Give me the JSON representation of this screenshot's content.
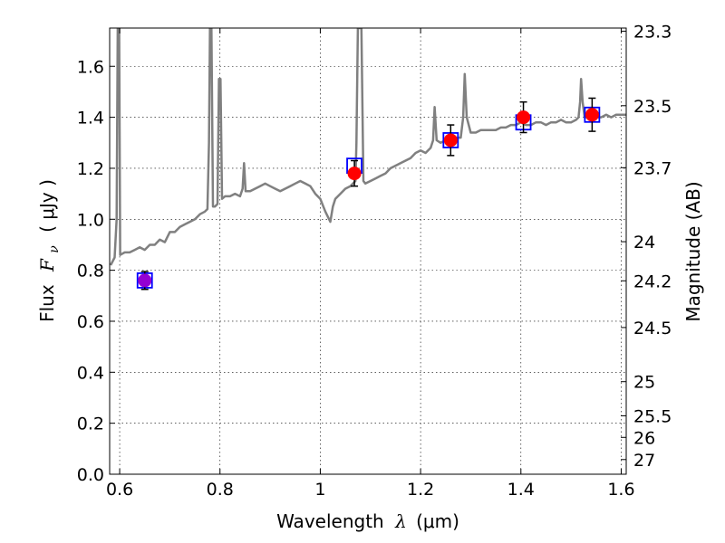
{
  "chart_data": {
    "type": "scatter",
    "xlabel_prefix": "Wavelength",
    "xlabel_symbol": "λ",
    "xlabel_units": "(μm)",
    "ylabel_prefix": "Flux",
    "ylabel_symbol": "F",
    "ylabel_subscript": "ν",
    "ylabel_units": "( μJy )",
    "y2label": "Magnitude (AB)",
    "xlim": [
      0.58,
      1.61
    ],
    "ylim": [
      0.0,
      1.75
    ],
    "grid": true,
    "x_ticks": [
      {
        "value": 0.6,
        "label": "0.6"
      },
      {
        "value": 0.8,
        "label": "0.8"
      },
      {
        "value": 1.0,
        "label": "1"
      },
      {
        "value": 1.2,
        "label": "1.2"
      },
      {
        "value": 1.4,
        "label": "1.4"
      },
      {
        "value": 1.6,
        "label": "1.6"
      }
    ],
    "y_ticks": [
      {
        "value": 0.0,
        "label": "0.0"
      },
      {
        "value": 0.2,
        "label": "0.2"
      },
      {
        "value": 0.4,
        "label": "0.4"
      },
      {
        "value": 0.6,
        "label": "0.6"
      },
      {
        "value": 0.8,
        "label": "0.8"
      },
      {
        "value": 1.0,
        "label": "1.0"
      },
      {
        "value": 1.2,
        "label": "1.2"
      },
      {
        "value": 1.4,
        "label": "1.4"
      },
      {
        "value": 1.6,
        "label": "1.6"
      }
    ],
    "y2_ticks": [
      {
        "label": "23.3",
        "mag": 23.3
      },
      {
        "label": "23.5",
        "mag": 23.5
      },
      {
        "label": "23.7",
        "mag": 23.7
      },
      {
        "label": "24",
        "mag": 24.0
      },
      {
        "label": "24.2",
        "mag": 24.2
      },
      {
        "label": "24.5",
        "mag": 24.5
      },
      {
        "label": "25",
        "mag": 25.0
      },
      {
        "label": "25.5",
        "mag": 25.5
      },
      {
        "label": "26",
        "mag": 26.0
      },
      {
        "label": "27",
        "mag": 27.0
      }
    ],
    "series": [
      {
        "style": "line",
        "color": "#808080",
        "points": [
          [
            0.582,
            0.82
          ],
          [
            0.59,
            0.85
          ],
          [
            0.594,
            1.0
          ],
          [
            0.596,
            1.75
          ],
          [
            0.599,
            1.75
          ],
          [
            0.601,
            0.86
          ],
          [
            0.61,
            0.87
          ],
          [
            0.62,
            0.87
          ],
          [
            0.63,
            0.88
          ],
          [
            0.64,
            0.89
          ],
          [
            0.65,
            0.88
          ],
          [
            0.66,
            0.9
          ],
          [
            0.67,
            0.9
          ],
          [
            0.68,
            0.92
          ],
          [
            0.69,
            0.91
          ],
          [
            0.7,
            0.95
          ],
          [
            0.71,
            0.95
          ],
          [
            0.72,
            0.97
          ],
          [
            0.73,
            0.98
          ],
          [
            0.74,
            0.99
          ],
          [
            0.75,
            1.0
          ],
          [
            0.76,
            1.02
          ],
          [
            0.77,
            1.03
          ],
          [
            0.775,
            1.04
          ],
          [
            0.778,
            1.3
          ],
          [
            0.78,
            1.75
          ],
          [
            0.783,
            1.75
          ],
          [
            0.786,
            1.05
          ],
          [
            0.79,
            1.05
          ],
          [
            0.795,
            1.06
          ],
          [
            0.798,
            1.55
          ],
          [
            0.801,
            1.55
          ],
          [
            0.804,
            1.08
          ],
          [
            0.81,
            1.09
          ],
          [
            0.82,
            1.09
          ],
          [
            0.83,
            1.1
          ],
          [
            0.84,
            1.09
          ],
          [
            0.845,
            1.12
          ],
          [
            0.848,
            1.22
          ],
          [
            0.851,
            1.11
          ],
          [
            0.86,
            1.11
          ],
          [
            0.87,
            1.12
          ],
          [
            0.88,
            1.13
          ],
          [
            0.89,
            1.14
          ],
          [
            0.9,
            1.13
          ],
          [
            0.91,
            1.12
          ],
          [
            0.92,
            1.11
          ],
          [
            0.93,
            1.12
          ],
          [
            0.94,
            1.13
          ],
          [
            0.95,
            1.14
          ],
          [
            0.96,
            1.15
          ],
          [
            0.97,
            1.14
          ],
          [
            0.98,
            1.13
          ],
          [
            0.99,
            1.1
          ],
          [
            1.0,
            1.08
          ],
          [
            1.01,
            1.03
          ],
          [
            1.02,
            0.99
          ],
          [
            1.025,
            1.05
          ],
          [
            1.03,
            1.08
          ],
          [
            1.04,
            1.1
          ],
          [
            1.05,
            1.12
          ],
          [
            1.06,
            1.13
          ],
          [
            1.07,
            1.15
          ],
          [
            1.072,
            1.3
          ],
          [
            1.075,
            1.75
          ],
          [
            1.082,
            1.75
          ],
          [
            1.086,
            1.15
          ],
          [
            1.09,
            1.14
          ],
          [
            1.1,
            1.15
          ],
          [
            1.11,
            1.16
          ],
          [
            1.12,
            1.17
          ],
          [
            1.13,
            1.18
          ],
          [
            1.14,
            1.2
          ],
          [
            1.15,
            1.21
          ],
          [
            1.16,
            1.22
          ],
          [
            1.17,
            1.23
          ],
          [
            1.18,
            1.24
          ],
          [
            1.19,
            1.26
          ],
          [
            1.2,
            1.27
          ],
          [
            1.21,
            1.26
          ],
          [
            1.22,
            1.28
          ],
          [
            1.225,
            1.31
          ],
          [
            1.228,
            1.44
          ],
          [
            1.232,
            1.31
          ],
          [
            1.24,
            1.3
          ],
          [
            1.25,
            1.31
          ],
          [
            1.26,
            1.31
          ],
          [
            1.27,
            1.32
          ],
          [
            1.28,
            1.32
          ],
          [
            1.285,
            1.4
          ],
          [
            1.288,
            1.57
          ],
          [
            1.292,
            1.4
          ],
          [
            1.3,
            1.34
          ],
          [
            1.31,
            1.34
          ],
          [
            1.32,
            1.35
          ],
          [
            1.33,
            1.35
          ],
          [
            1.34,
            1.35
          ],
          [
            1.35,
            1.35
          ],
          [
            1.36,
            1.36
          ],
          [
            1.37,
            1.36
          ],
          [
            1.38,
            1.37
          ],
          [
            1.39,
            1.37
          ],
          [
            1.4,
            1.38
          ],
          [
            1.41,
            1.37
          ],
          [
            1.42,
            1.37
          ],
          [
            1.43,
            1.38
          ],
          [
            1.44,
            1.38
          ],
          [
            1.45,
            1.37
          ],
          [
            1.46,
            1.38
          ],
          [
            1.47,
            1.38
          ],
          [
            1.48,
            1.39
          ],
          [
            1.49,
            1.38
          ],
          [
            1.5,
            1.38
          ],
          [
            1.51,
            1.39
          ],
          [
            1.515,
            1.4
          ],
          [
            1.518,
            1.46
          ],
          [
            1.52,
            1.55
          ],
          [
            1.523,
            1.46
          ],
          [
            1.527,
            1.4
          ],
          [
            1.535,
            1.4
          ],
          [
            1.55,
            1.4
          ],
          [
            1.56,
            1.4
          ],
          [
            1.57,
            1.41
          ],
          [
            1.58,
            1.4
          ],
          [
            1.59,
            1.41
          ],
          [
            1.6,
            1.41
          ],
          [
            1.61,
            1.41
          ]
        ]
      },
      {
        "style": "open-square",
        "color": "#0000ff",
        "points": [
          [
            0.65,
            0.76
          ],
          [
            1.068,
            1.21
          ],
          [
            1.26,
            1.31
          ],
          [
            1.405,
            1.38
          ],
          [
            1.542,
            1.41
          ]
        ]
      },
      {
        "style": "filled-circle-errorbar",
        "color": "#ff0000",
        "points": [
          {
            "x": 1.068,
            "y": 1.18,
            "err": 0.05
          },
          {
            "x": 1.26,
            "y": 1.31,
            "err": 0.06
          },
          {
            "x": 1.405,
            "y": 1.4,
            "err": 0.06
          },
          {
            "x": 1.542,
            "y": 1.41,
            "err": 0.065
          }
        ]
      },
      {
        "style": "filled-circle-errorbar",
        "color": "#9400d3",
        "points": [
          {
            "x": 0.65,
            "y": 0.76,
            "err": 0.035
          }
        ]
      }
    ]
  }
}
